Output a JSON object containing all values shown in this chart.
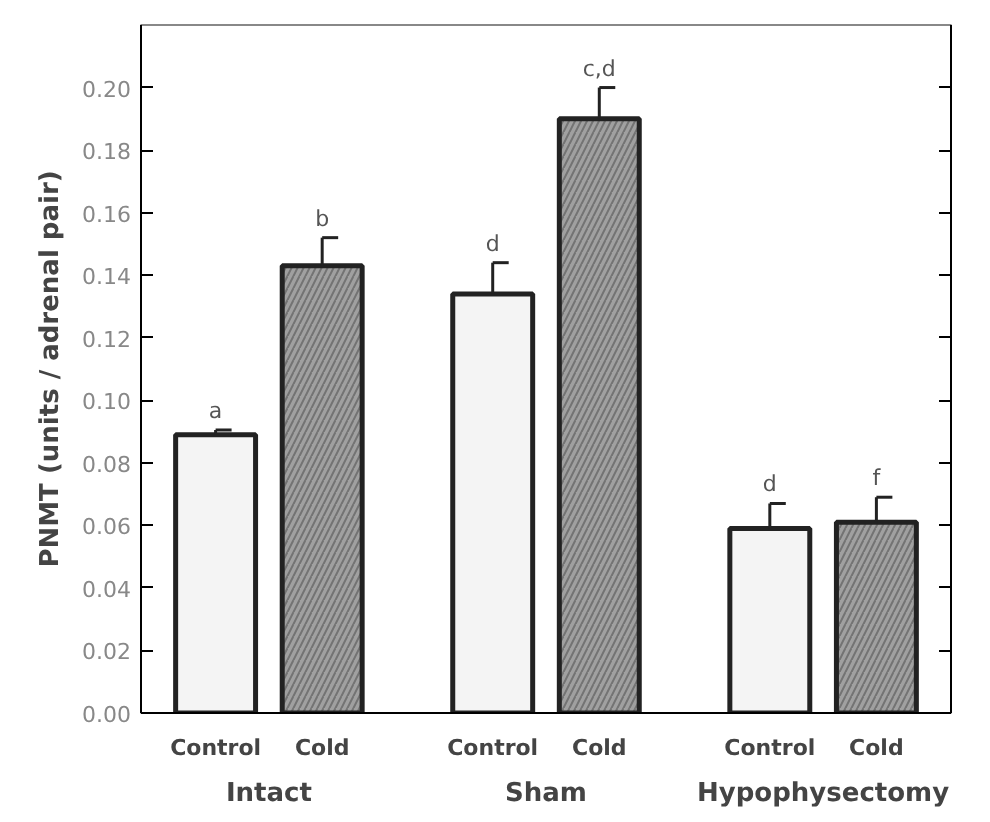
{
  "chart_data": {
    "type": "bar",
    "ylabel": "PNMT (units / adrenal pair)",
    "categories": [
      "Control",
      "Cold",
      "Control",
      "Cold",
      "Control",
      "Cold"
    ],
    "values": [
      0.089,
      0.143,
      0.134,
      0.19,
      0.059,
      0.061
    ],
    "errors": [
      0.0015,
      0.009,
      0.01,
      0.01,
      0.008,
      0.008
    ],
    "value_labels": [
      "a",
      "b",
      "d",
      "c,d",
      "d",
      "f"
    ],
    "colors": [
      "#f4f4f4",
      "#a0a0a0",
      "#f4f4f4",
      "#a0a0a0",
      "#f4f4f4",
      "#a0a0a0"
    ],
    "annotations": [
      "Intact",
      "Sham",
      "Hypophysectomy"
    ],
    "ylim": [
      0,
      0.22
    ],
    "yticks": [
      {
        "value": 0,
        "label": "0.00"
      },
      {
        "value": 0.02,
        "label": "0.02"
      },
      {
        "value": 0.04,
        "label": "0.04"
      },
      {
        "value": 0.06,
        "label": "0.06"
      },
      {
        "value": 0.08,
        "label": "0.08"
      },
      {
        "value": 0.1,
        "label": "0.10"
      },
      {
        "value": 0.12,
        "label": "0.12"
      },
      {
        "value": 0.14,
        "label": "0.14"
      },
      {
        "value": 0.16,
        "label": "0.16"
      },
      {
        "value": 0.18,
        "label": "0.18"
      },
      {
        "value": 0.2,
        "label": "0.20"
      }
    ],
    "grid": false
  }
}
